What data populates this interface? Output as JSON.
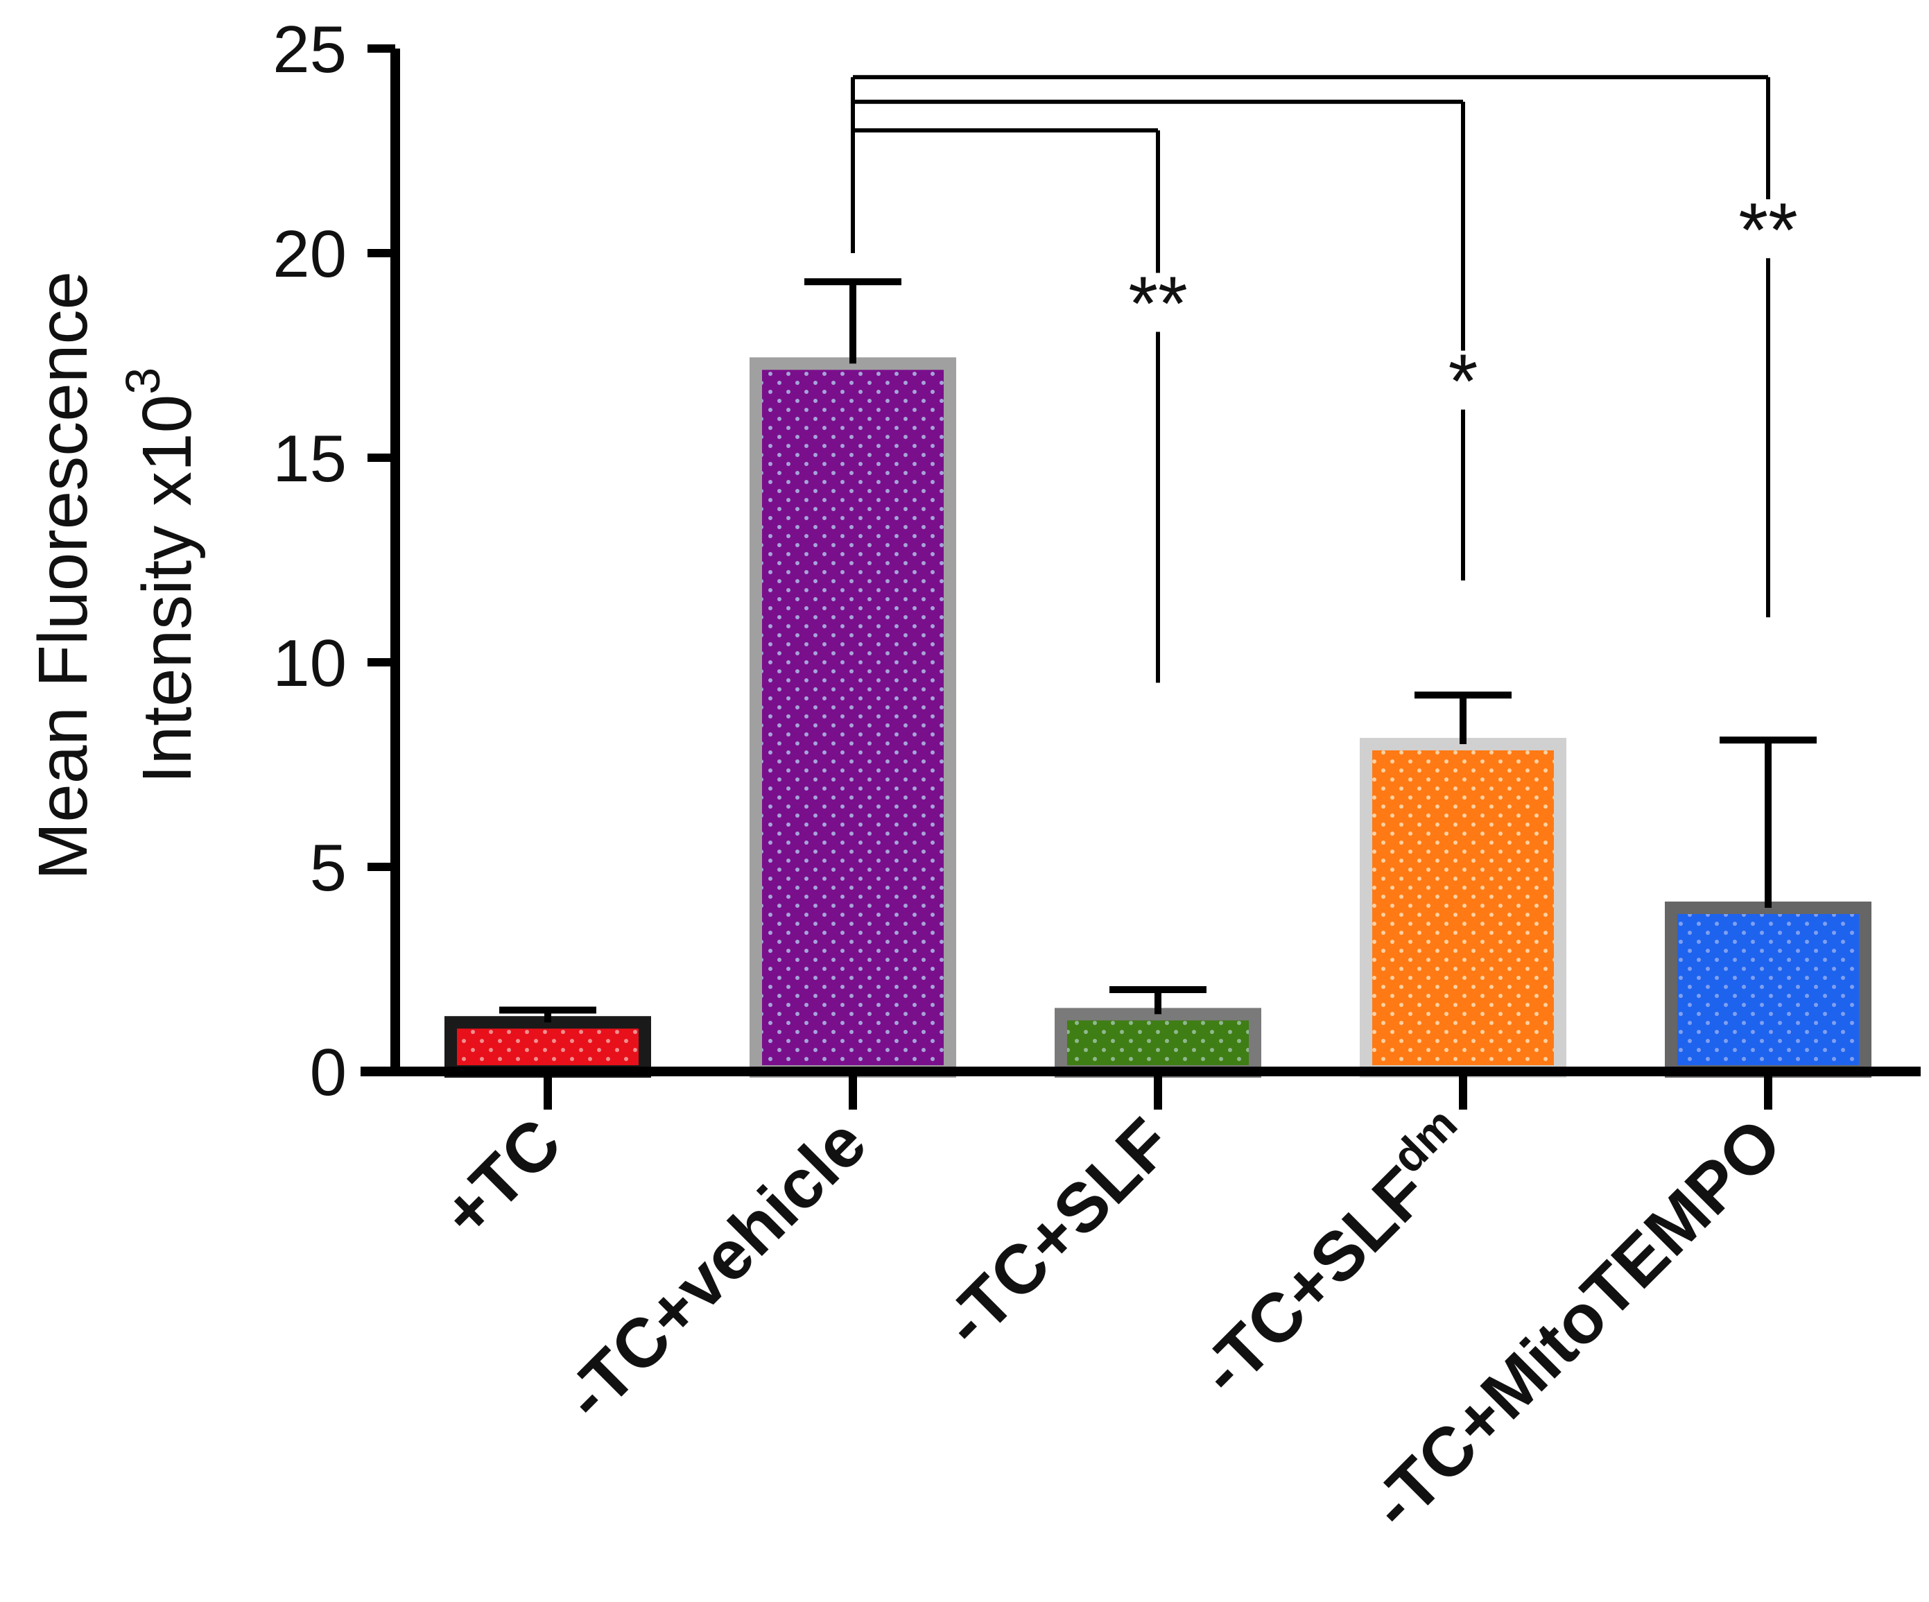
{
  "chart_data": {
    "type": "bar",
    "title": "",
    "xlabel": "",
    "ylabel": {
      "line1": "Mean Fluorescence",
      "line2": "Intensity x10",
      "exponent": "3"
    },
    "ylim": [
      0,
      25
    ],
    "yticks": [
      0,
      5,
      10,
      15,
      20,
      25
    ],
    "grid": false,
    "categories": [
      "+TC",
      "-TC+vehicle",
      "-TC+SLF",
      "-TC+SLFdm",
      "-TC+MitoTEMPO"
    ],
    "category_labels": [
      {
        "base": "+TC",
        "sup": ""
      },
      {
        "base": "-TC+vehicle",
        "sup": ""
      },
      {
        "base": "-TC+SLF",
        "sup": ""
      },
      {
        "base": "-TC+SLF",
        "sup": "dm"
      },
      {
        "base": "-TC+MitoTEMPO",
        "sup": ""
      }
    ],
    "values": [
      1.2,
      17.3,
      1.4,
      8.0,
      4.0
    ],
    "error_upper": [
      1.5,
      19.3,
      2.0,
      9.2,
      8.1
    ],
    "colors": {
      "fill": [
        "#e8101a",
        "#7a0f8c",
        "#3f7e14",
        "#ff7a14",
        "#1e63ee"
      ],
      "border": [
        "#1a1a1a",
        "#a0a0a0",
        "#7a7a7a",
        "#d0d0d0",
        "#666666"
      ],
      "dot": [
        "#f08f8f",
        "#a5a5d8",
        "#8fb88f",
        "#ffd0a0",
        "#7fa0f0"
      ]
    },
    "comparisons": [
      {
        "from": 1,
        "to": 2,
        "bracket_y": 23.0,
        "line_bottom": 9.5,
        "label": "**",
        "label_y": 18.5
      },
      {
        "from": 1,
        "to": 3,
        "bracket_y": 23.7,
        "line_bottom": 12.0,
        "label": "*",
        "label_y": 16.6
      },
      {
        "from": 1,
        "to": 4,
        "bracket_y": 24.3,
        "line_bottom": 11.1,
        "label": "**",
        "label_y": 20.3
      }
    ]
  }
}
